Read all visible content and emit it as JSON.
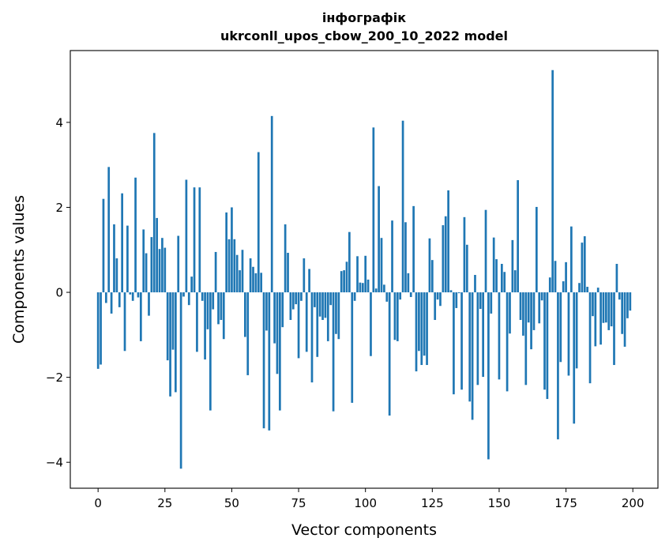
{
  "chart_data": {
    "type": "bar",
    "title": "інфографік\nukrconll_upos_cbow_200_10_2022 model",
    "title_lines": [
      "інфографік",
      "ukrconll_upos_cbow_200_10_2022 model"
    ],
    "xlabel": "Vector components",
    "ylabel": "Components values",
    "xlim": [
      -10.39,
      209.39
    ],
    "ylim": [
      -4.61,
      5.69
    ],
    "xticks": [
      0,
      25,
      50,
      75,
      100,
      125,
      150,
      175,
      200
    ],
    "xtick_labels": [
      "0",
      "25",
      "50",
      "75",
      "100",
      "125",
      "150",
      "175",
      "200"
    ],
    "yticks": [
      -4,
      -2,
      0,
      2,
      4
    ],
    "ytick_labels": [
      "−4",
      "−2",
      "0",
      "2",
      "4"
    ],
    "grid": false,
    "bar_color": "#1f77b4",
    "values": [
      -1.8,
      -1.7,
      2.2,
      -0.25,
      2.95,
      -0.5,
      1.6,
      0.8,
      -0.35,
      2.33,
      -1.38,
      1.57,
      -0.05,
      -0.2,
      2.7,
      -0.12,
      -1.15,
      1.48,
      0.92,
      -0.55,
      1.3,
      3.75,
      1.75,
      1.02,
      1.28,
      1.05,
      -1.6,
      -2.45,
      -1.35,
      -2.35,
      1.33,
      -4.15,
      -0.1,
      2.65,
      -0.3,
      0.37,
      2.47,
      -1.4,
      2.47,
      -0.2,
      -1.58,
      -0.87,
      -2.78,
      -0.4,
      0.95,
      -0.75,
      -0.65,
      -1.1,
      1.88,
      1.25,
      2.0,
      1.25,
      0.88,
      0.52,
      1.0,
      -1.05,
      -1.95,
      0.8,
      0.6,
      0.45,
      3.3,
      0.46,
      -3.2,
      -0.9,
      -3.25,
      4.15,
      -1.2,
      -1.92,
      -2.78,
      -0.82,
      1.6,
      0.93,
      -0.65,
      -0.4,
      -0.28,
      -1.55,
      -0.2,
      0.8,
      -1.4,
      0.55,
      -2.12,
      -0.35,
      -1.52,
      -0.57,
      -0.65,
      -0.6,
      -1.15,
      -0.3,
      -2.8,
      -0.98,
      -1.1,
      0.5,
      0.52,
      0.72,
      1.42,
      -2.6,
      -0.2,
      0.85,
      0.23,
      0.22,
      0.86,
      0.3,
      -1.5,
      3.88,
      0.09,
      2.5,
      1.28,
      0.18,
      -0.22,
      -2.9,
      1.69,
      -1.12,
      -1.15,
      -0.17,
      4.04,
      1.65,
      0.45,
      -0.11,
      2.03,
      -1.86,
      -1.38,
      -1.71,
      -1.49,
      -1.71,
      1.27,
      0.76,
      -0.65,
      -0.17,
      -0.32,
      1.58,
      1.79,
      2.4,
      0.05,
      -2.4,
      -0.37,
      -0.02,
      -2.29,
      1.77,
      1.12,
      -2.57,
      -3.0,
      0.41,
      -2.18,
      -0.39,
      -1.99,
      1.94,
      -3.93,
      -0.5,
      1.29,
      0.78,
      -2.05,
      0.67,
      0.48,
      -2.33,
      -0.97,
      1.23,
      0.52,
      2.64,
      -0.65,
      -1.02,
      -2.18,
      -0.71,
      -1.34,
      -0.89,
      2.01,
      -0.73,
      -0.19,
      -2.29,
      -2.51,
      0.35,
      5.23,
      0.74,
      -3.46,
      -1.64,
      0.26,
      0.71,
      -1.96,
      1.55,
      -3.09,
      -1.79,
      0.22,
      1.17,
      1.32,
      0.13,
      -2.14,
      -0.56,
      -1.27,
      0.11,
      -1.23,
      -0.72,
      -0.71,
      -0.89,
      -0.8,
      -1.71,
      0.67,
      -0.17,
      -0.98,
      -1.28,
      -0.61,
      -0.43
    ]
  }
}
